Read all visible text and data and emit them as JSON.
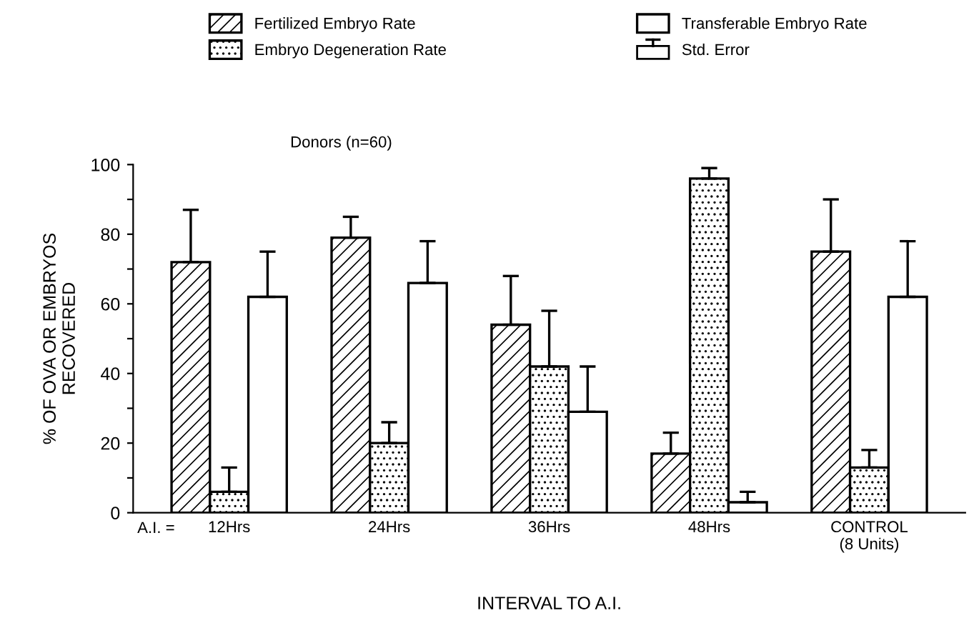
{
  "chart_data": {
    "type": "bar",
    "subtitle": "Donors (n=60)",
    "xlabel": "INTERVAL TO A.I.",
    "ylabel": "% OF OVA OR EMBRYOS\nRECOVERED",
    "categories": [
      "12Hrs",
      "24Hrs",
      "36Hrs",
      "48Hrs",
      "CONTROL\n(8 Units)"
    ],
    "series": [
      {
        "name": "Fertilized Embryo Rate",
        "color": "#000000",
        "values": [
          72,
          79,
          54,
          17,
          75
        ],
        "errors": [
          15,
          6,
          14,
          6,
          15
        ]
      },
      {
        "name": "Embryo Degeneration Rate",
        "color": "#000000",
        "values": [
          6,
          20,
          42,
          96,
          13
        ],
        "errors": [
          7,
          6,
          16,
          3,
          5
        ]
      },
      {
        "name": "Transferable Embryo Rate",
        "color": "#ffffff",
        "values": [
          62,
          66,
          29,
          3,
          62
        ],
        "errors": [
          13,
          12,
          13,
          3,
          16
        ]
      }
    ],
    "ylim": [
      0,
      100
    ],
    "yticks": [
      0,
      {
        "value": 10,
        "label": null
      },
      20,
      {
        "value": 30,
        "label": null
      },
      40,
      {
        "value": 50,
        "label": null
      },
      60,
      {
        "value": 70,
        "label": null
      },
      80,
      {
        "value": 90,
        "label": null
      },
      100
    ],
    "annotations": [
      "A.I. =",
      "Std. Error"
    ],
    "legend": "top",
    "grid": false
  }
}
